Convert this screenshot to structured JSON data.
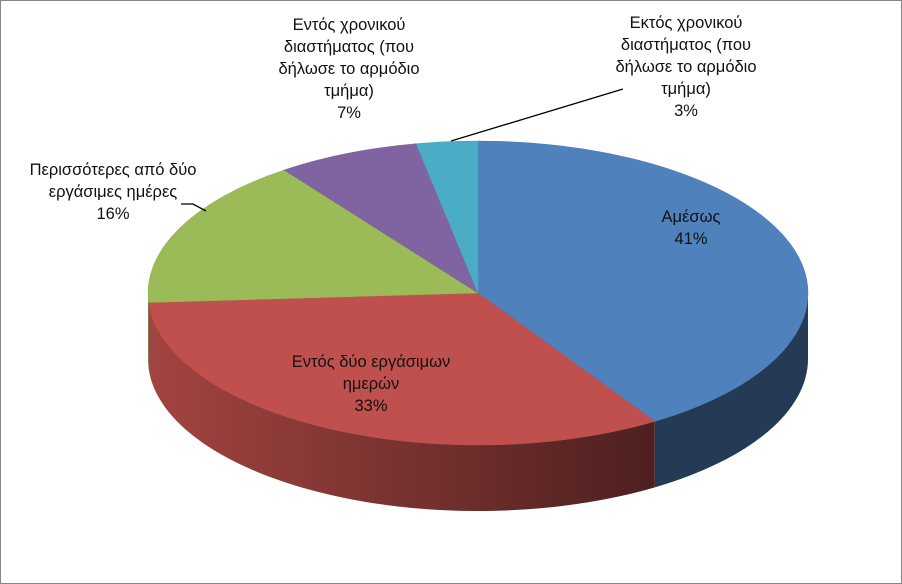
{
  "chart_data": {
    "type": "pie",
    "categories": [
      "Αμέσως",
      "Εντός δύο εργάσιμων ημερών",
      "Περισσότερες από δύο εργάσιμες ημέρες",
      "Εντός χρονικού διαστήματος (που δήλωσε το αρμόδιο τμήμα)",
      "Εκτός χρονικού διαστήματος (που δήλωσε το αρμόδιο τμήμα)"
    ],
    "values": [
      41,
      33,
      16,
      7,
      3
    ],
    "value_labels": [
      "41%",
      "33%",
      "16%",
      "7%",
      "3%"
    ],
    "colors": [
      "#4f81bd",
      "#c0504d",
      "#9bbb59",
      "#8064a2",
      "#4bacc6"
    ]
  }
}
